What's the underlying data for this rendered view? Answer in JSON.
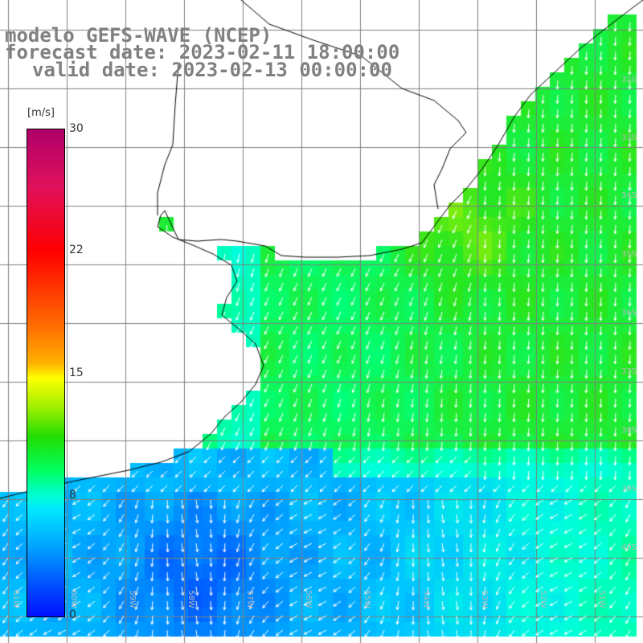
{
  "title": {
    "line1": "modelo GEFS-WAVE (NCEP)",
    "line2": "forecast date: 2023-02-11 18:00:00",
    "line3": "valid date: 2023-02-13 00:00:00"
  },
  "colorbar": {
    "unit": "[m/s]",
    "ticks": [
      "30",
      "22",
      "15",
      "8",
      "0"
    ],
    "tick_values": [
      30,
      22,
      15,
      8,
      0
    ],
    "range": [
      0,
      30
    ],
    "colors": [
      "#0010ff",
      "#00a0ff",
      "#00ffe0",
      "#22dd00",
      "#ffff00",
      "#ff6a00",
      "#ff0000",
      "#b0006a"
    ]
  },
  "map": {
    "variable": "wind speed and direction",
    "land_color": "#ffffff",
    "coastline_color": "#000000",
    "grid_color": "#7f7f7f",
    "arrow_color": "#ffffff",
    "lat_labels": [
      "32S",
      "33S",
      "34S",
      "35S",
      "36S",
      "37S",
      "38S",
      "39S",
      "40S"
    ],
    "lon_labels": [
      "61W",
      "60W",
      "59W",
      "58W",
      "57W",
      "56W",
      "55W",
      "54W",
      "53W",
      "52W",
      "51W"
    ]
  }
}
